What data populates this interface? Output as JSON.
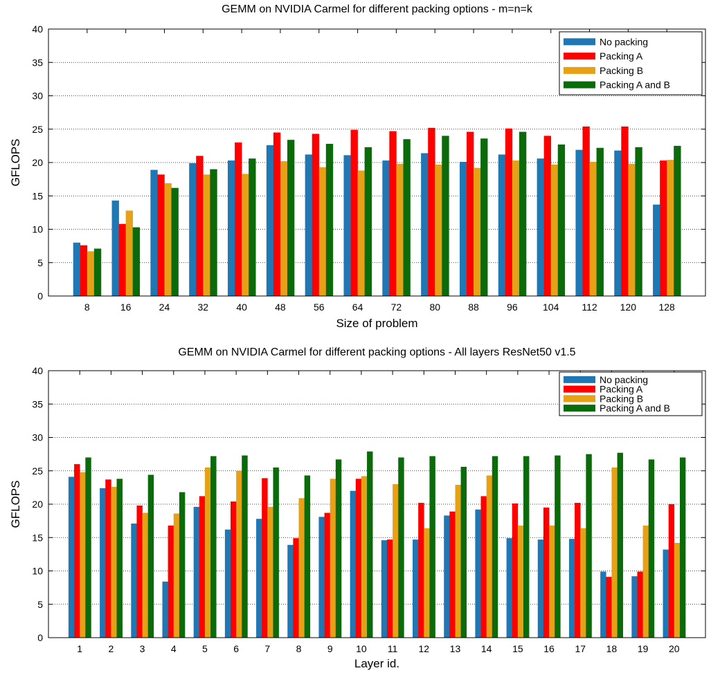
{
  "chart_data": [
    {
      "type": "bar",
      "title": "GEMM on NVIDIA Carmel for different packing options - m=n=k",
      "xlabel": "Size of problem",
      "ylabel": "GFLOPS",
      "ylim": [
        0,
        40
      ],
      "yticks": [
        0,
        5,
        10,
        15,
        20,
        25,
        30,
        35,
        40
      ],
      "grid": true,
      "legend_position": "top-right",
      "categories": [
        "8",
        "16",
        "24",
        "32",
        "40",
        "48",
        "56",
        "64",
        "72",
        "80",
        "88",
        "96",
        "104",
        "112",
        "120",
        "128"
      ],
      "series": [
        {
          "name": "No packing",
          "color": "#1f77b4",
          "values": [
            8.0,
            14.3,
            18.9,
            19.9,
            20.3,
            22.6,
            21.2,
            21.1,
            20.3,
            21.4,
            20.1,
            21.2,
            20.6,
            21.9,
            21.8,
            13.7
          ]
        },
        {
          "name": "Packing A",
          "color": "#ff0000",
          "values": [
            7.6,
            10.8,
            18.2,
            21.0,
            23.0,
            24.5,
            24.3,
            24.9,
            24.7,
            25.2,
            24.6,
            25.1,
            24.0,
            25.4,
            25.4,
            20.3
          ]
        },
        {
          "name": "Packing B",
          "color": "#e6a117",
          "values": [
            6.7,
            12.8,
            16.9,
            18.2,
            18.3,
            20.2,
            19.3,
            18.8,
            19.8,
            19.7,
            19.2,
            20.3,
            19.7,
            20.1,
            19.8,
            20.4
          ]
        },
        {
          "name": "Packing A and B",
          "color": "#0b6b0b",
          "values": [
            7.1,
            10.3,
            16.2,
            19.0,
            20.6,
            23.4,
            22.8,
            22.3,
            23.5,
            24.0,
            23.6,
            24.6,
            22.7,
            22.2,
            22.3,
            22.5
          ]
        }
      ]
    },
    {
      "type": "bar",
      "title": "GEMM on NVIDIA Carmel for different packing options - All layers ResNet50 v1.5",
      "xlabel": "Layer id.",
      "ylabel": "GFLOPS",
      "ylim": [
        0,
        40
      ],
      "yticks": [
        0,
        5,
        10,
        15,
        20,
        25,
        30,
        35,
        40
      ],
      "grid": true,
      "legend_position": "top-right",
      "categories": [
        "1",
        "2",
        "3",
        "4",
        "5",
        "6",
        "7",
        "8",
        "9",
        "10",
        "11",
        "12",
        "13",
        "14",
        "15",
        "16",
        "17",
        "18",
        "19",
        "20"
      ],
      "series": [
        {
          "name": "No packing",
          "color": "#1f77b4",
          "values": [
            24.1,
            22.4,
            17.1,
            8.4,
            19.6,
            16.2,
            17.8,
            13.9,
            18.1,
            22.0,
            14.6,
            14.7,
            18.3,
            19.2,
            14.9,
            14.7,
            14.8,
            9.9,
            9.2,
            13.2
          ]
        },
        {
          "name": "Packing A",
          "color": "#ff0000",
          "values": [
            26.0,
            23.7,
            19.8,
            16.8,
            21.2,
            20.4,
            23.9,
            14.9,
            18.7,
            23.8,
            14.7,
            20.2,
            18.9,
            21.2,
            20.1,
            19.5,
            20.2,
            9.1,
            9.9,
            20.0
          ]
        },
        {
          "name": "Packing B",
          "color": "#e6a117",
          "values": [
            24.8,
            22.6,
            18.7,
            18.6,
            25.5,
            25.0,
            19.6,
            20.9,
            23.8,
            24.2,
            23.0,
            16.4,
            22.9,
            24.3,
            16.8,
            16.8,
            16.4,
            25.5,
            16.8,
            14.2
          ]
        },
        {
          "name": "Packing A and B",
          "color": "#0b6b0b",
          "values": [
            27.0,
            23.8,
            24.4,
            21.8,
            27.2,
            27.3,
            25.5,
            24.3,
            26.7,
            27.9,
            27.0,
            27.2,
            25.6,
            27.2,
            27.2,
            27.3,
            27.5,
            27.7,
            26.7,
            27.0
          ]
        }
      ]
    }
  ]
}
